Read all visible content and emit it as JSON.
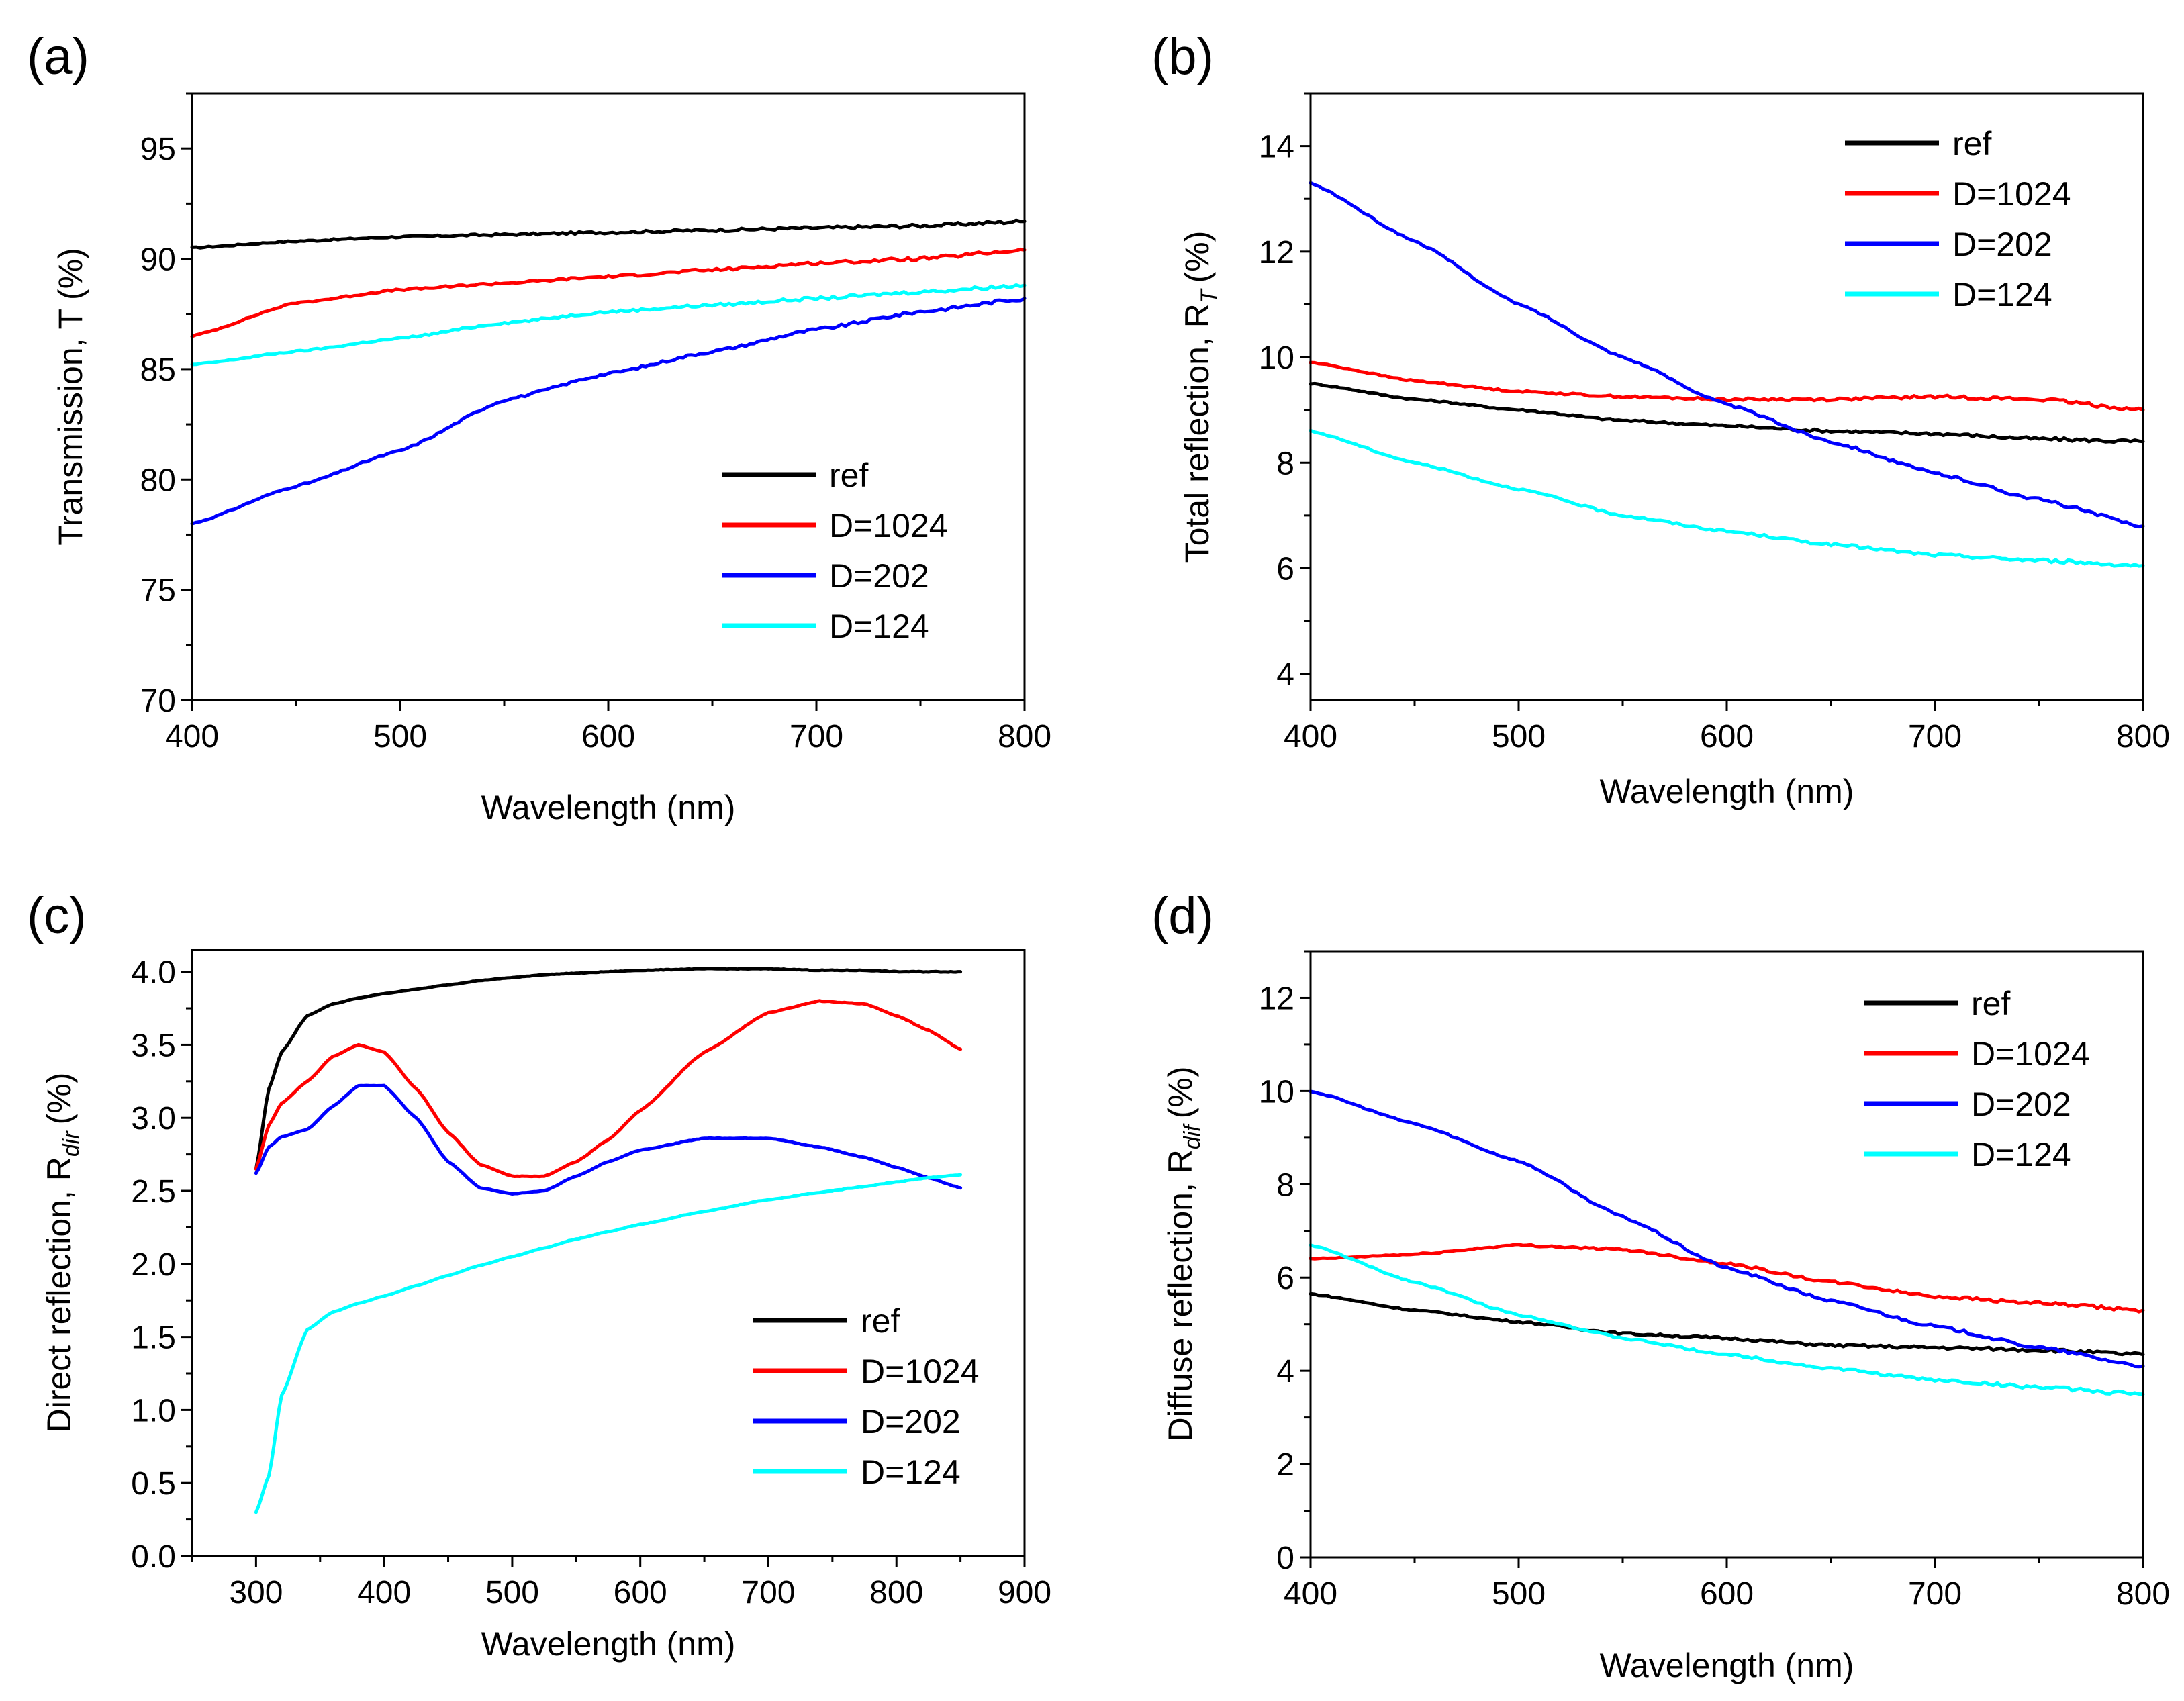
{
  "colors": {
    "ref": "#000000",
    "D=1024": "#ff0000",
    "D=202": "#0000ff",
    "D=124": "#00ffff"
  },
  "chart_data": [
    {
      "panel": "(a)",
      "type": "line",
      "xlabel": "Wavelength (nm)",
      "ylabel": "Transmission, T (%)",
      "xlim": [
        400,
        800
      ],
      "ylim": [
        70,
        97.5
      ],
      "xticks": [
        400,
        500,
        600,
        700,
        800
      ],
      "yticks": [
        70,
        75,
        80,
        85,
        90,
        95
      ],
      "legend_position": "bottom-right",
      "x": [
        400,
        450,
        500,
        550,
        600,
        650,
        700,
        750,
        800
      ],
      "series": [
        {
          "name": "ref",
          "values": [
            90.5,
            90.8,
            91.0,
            91.1,
            91.2,
            91.3,
            91.4,
            91.5,
            91.7
          ]
        },
        {
          "name": "D=1024",
          "values": [
            86.5,
            88.0,
            88.6,
            88.9,
            89.2,
            89.5,
            89.8,
            90.0,
            90.4
          ]
        },
        {
          "name": "D=202",
          "values": [
            78.0,
            79.7,
            81.3,
            83.6,
            84.8,
            85.8,
            86.8,
            87.6,
            88.2
          ]
        },
        {
          "name": "D=124",
          "values": [
            85.2,
            85.8,
            86.4,
            87.1,
            87.6,
            87.9,
            88.2,
            88.5,
            88.8
          ]
        }
      ]
    },
    {
      "panel": "(b)",
      "type": "line",
      "xlabel": "Wavelength (nm)",
      "ylabel": "Total reflection, R",
      "ylabel_sub": "T",
      "ylabel_unit": "(%)",
      "xlim": [
        400,
        800
      ],
      "ylim": [
        3.5,
        15
      ],
      "xticks": [
        400,
        500,
        600,
        700,
        800
      ],
      "yticks": [
        4,
        6,
        8,
        10,
        12,
        14
      ],
      "legend_position": "top-right",
      "x": [
        400,
        450,
        500,
        550,
        600,
        650,
        700,
        750,
        800
      ],
      "series": [
        {
          "name": "ref",
          "values": [
            9.5,
            9.2,
            9.0,
            8.8,
            8.7,
            8.6,
            8.55,
            8.45,
            8.4
          ]
        },
        {
          "name": "D=1024",
          "values": [
            9.9,
            9.55,
            9.35,
            9.25,
            9.2,
            9.2,
            9.25,
            9.2,
            9.0
          ]
        },
        {
          "name": "D=202",
          "values": [
            13.3,
            12.2,
            11.0,
            10.0,
            9.1,
            8.4,
            7.8,
            7.3,
            6.8
          ]
        },
        {
          "name": "D=124",
          "values": [
            8.6,
            8.0,
            7.5,
            7.0,
            6.7,
            6.45,
            6.25,
            6.15,
            6.05
          ]
        }
      ]
    },
    {
      "panel": "(c)",
      "type": "line",
      "xlabel": "Wavelength (nm)",
      "ylabel": "Direct reflection, R",
      "ylabel_sub": "dir",
      "ylabel_unit": "(%)",
      "xlim": [
        250,
        900
      ],
      "ylim": [
        0,
        4.15
      ],
      "xticks": [
        300,
        400,
        500,
        600,
        700,
        800,
        900
      ],
      "yticks": [
        0.0,
        0.5,
        1.0,
        1.5,
        2.0,
        2.5,
        3.0,
        3.5,
        4.0
      ],
      "ytick_labels": [
        "0.0",
        "0.5",
        "1.0",
        "1.5",
        "2.0",
        "2.5",
        "3.0",
        "3.5",
        "4.0"
      ],
      "legend_position": "bottom-right",
      "x": [
        300,
        310,
        320,
        340,
        360,
        380,
        400,
        425,
        450,
        475,
        500,
        525,
        550,
        575,
        600,
        650,
        700,
        740,
        775,
        800,
        825,
        850
      ],
      "series": [
        {
          "name": "ref",
          "values": [
            2.65,
            3.2,
            3.45,
            3.7,
            3.78,
            3.82,
            3.85,
            3.88,
            3.91,
            3.94,
            3.96,
            3.98,
            3.99,
            4.0,
            4.01,
            4.02,
            4.02,
            4.01,
            4.01,
            4.0,
            4.0,
            4.0
          ]
        },
        {
          "name": "D=1024",
          "values": [
            2.65,
            2.95,
            3.1,
            3.25,
            3.42,
            3.5,
            3.45,
            3.2,
            2.9,
            2.68,
            2.6,
            2.6,
            2.7,
            2.85,
            3.05,
            3.45,
            3.72,
            3.8,
            3.78,
            3.7,
            3.6,
            3.47
          ]
        },
        {
          "name": "D=202",
          "values": [
            2.62,
            2.8,
            2.87,
            2.92,
            3.08,
            3.22,
            3.22,
            3.0,
            2.7,
            2.52,
            2.48,
            2.5,
            2.6,
            2.7,
            2.78,
            2.86,
            2.86,
            2.8,
            2.73,
            2.66,
            2.59,
            2.52
          ]
        },
        {
          "name": "D=124",
          "values": [
            0.3,
            0.55,
            1.1,
            1.55,
            1.67,
            1.73,
            1.78,
            1.85,
            1.92,
            1.99,
            2.05,
            2.11,
            2.17,
            2.22,
            2.27,
            2.36,
            2.44,
            2.49,
            2.53,
            2.56,
            2.59,
            2.61
          ]
        }
      ]
    },
    {
      "panel": "(d)",
      "type": "line",
      "xlabel": "Wavelength (nm)",
      "ylabel": "Diffuse reflection, R",
      "ylabel_sub": "dif",
      "ylabel_unit": "(%)",
      "xlim": [
        400,
        800
      ],
      "ylim": [
        0,
        13
      ],
      "xticks": [
        400,
        500,
        600,
        700,
        800
      ],
      "yticks": [
        0,
        2,
        4,
        6,
        8,
        10,
        12
      ],
      "legend_position": "top-right",
      "x": [
        400,
        450,
        500,
        550,
        600,
        650,
        700,
        750,
        800
      ],
      "series": [
        {
          "name": "ref",
          "values": [
            5.65,
            5.3,
            5.05,
            4.8,
            4.7,
            4.55,
            4.5,
            4.45,
            4.35
          ]
        },
        {
          "name": "D=1024",
          "values": [
            6.4,
            6.5,
            6.7,
            6.6,
            6.3,
            5.9,
            5.6,
            5.45,
            5.3
          ]
        },
        {
          "name": "D=202",
          "values": [
            10.0,
            9.3,
            8.5,
            7.3,
            6.2,
            5.5,
            4.95,
            4.5,
            4.1
          ]
        },
        {
          "name": "D=124",
          "values": [
            6.7,
            5.9,
            5.2,
            4.7,
            4.35,
            4.05,
            3.8,
            3.65,
            3.5
          ]
        }
      ]
    }
  ]
}
